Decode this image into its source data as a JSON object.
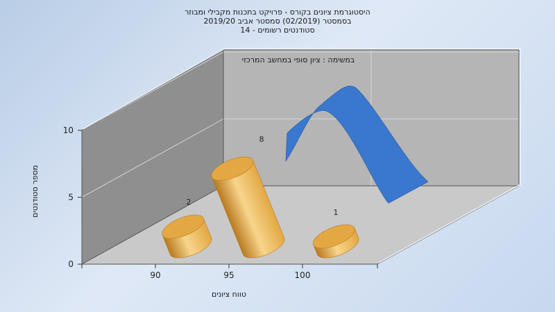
{
  "chart_data": {
    "type": "bar",
    "title_lines": [
      "היסטוגרמת ציונים בקורס - פרויקט בתכנות מקבילי ומבוזר",
      "בסמסטר (02/2019) סמסטר אביב 2019/20",
      "סטודנטים רשומים - 14"
    ],
    "subtitle": "במשימה : ציון סופי במחשב המרכזי",
    "xlabel": "טווח ציונים",
    "ylabel": "מספר סטודנטים",
    "categories": [
      "90",
      "95",
      "100"
    ],
    "values": [
      2,
      8,
      1
    ],
    "data_labels": [
      "2",
      "8",
      "1"
    ],
    "y_ticks": [
      "0",
      "5",
      "10"
    ],
    "ylim": [
      0,
      10
    ],
    "grid": true,
    "colors": {
      "bar": "#e3a843",
      "bar_dark": "#b97a1f",
      "bar_light": "#f7d58c",
      "curve": "#3a78cf",
      "floor": "#c9c9c9",
      "back_wall": "#b5b5b5",
      "side_wall": "#8f8f8f"
    }
  }
}
